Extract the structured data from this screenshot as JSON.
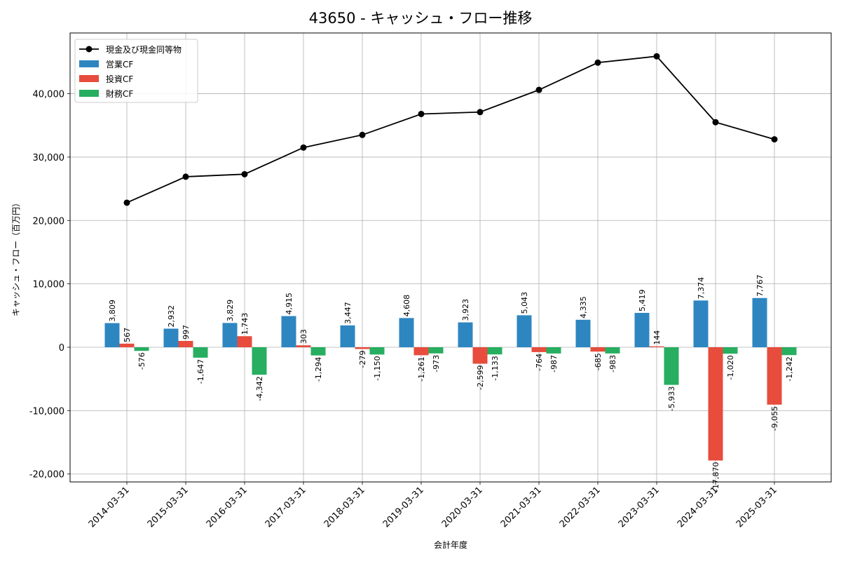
{
  "chart_data": {
    "type": "bar",
    "title": "43650 - キャッシュ・フロー推移",
    "xlabel": "会計年度",
    "ylabel": "キャッシュ・フロー（百万円）",
    "ylim": [
      -21000,
      49000
    ],
    "yticks": [
      -20000,
      -10000,
      0,
      10000,
      20000,
      30000,
      40000
    ],
    "ytick_labels": [
      "-20,000",
      "-10,000",
      "0",
      "10,000",
      "20,000",
      "30,000",
      "40,000"
    ],
    "grid": true,
    "legend_position": "top-left",
    "categories": [
      "2014-03-31",
      "2015-03-31",
      "2016-03-31",
      "2017-03-31",
      "2018-03-31",
      "2019-03-31",
      "2020-03-31",
      "2021-03-31",
      "2022-03-31",
      "2023-03-31",
      "2024-03-31",
      "2025-03-31"
    ],
    "series": [
      {
        "name": "営業CF",
        "kind": "bar",
        "color": "#2e86c1",
        "values": [
          3809,
          2932,
          3829,
          4915,
          3447,
          4608,
          3923,
          5043,
          4335,
          5419,
          7374,
          7767
        ],
        "labels": [
          "3,809",
          "2,932",
          "3,829",
          "4,915",
          "3,447",
          "4,608",
          "3,923",
          "5,043",
          "4,335",
          "5,419",
          "7,374",
          "7,767"
        ]
      },
      {
        "name": "投資CF",
        "kind": "bar",
        "color": "#e74c3c",
        "values": [
          567,
          997,
          1743,
          303,
          -279,
          -1261,
          -2599,
          -764,
          -685,
          144,
          -17870,
          -9055
        ],
        "labels": [
          "567",
          "997",
          "1,743",
          "303",
          "-279",
          "-1,261",
          "-2,599",
          "-764",
          "-685",
          "144",
          "-17,870",
          "-9,055"
        ]
      },
      {
        "name": "財務CF",
        "kind": "bar",
        "color": "#27ae60",
        "values": [
          -576,
          -1647,
          -4342,
          -1294,
          -1150,
          -973,
          -1133,
          -987,
          -983,
          -5933,
          -1020,
          -1242
        ],
        "labels": [
          "-576",
          "-1,647",
          "-4,342",
          "-1,294",
          "-1,150",
          "-973",
          "-1,133",
          "-987",
          "-983",
          "-5,933",
          "-1,020",
          "-1,242"
        ]
      },
      {
        "name": "現金及び現金同等物",
        "kind": "line",
        "color": "#000000",
        "values": [
          22800,
          26900,
          27300,
          31500,
          33500,
          36800,
          37100,
          40600,
          44900,
          45900,
          35500,
          32800
        ]
      }
    ]
  }
}
